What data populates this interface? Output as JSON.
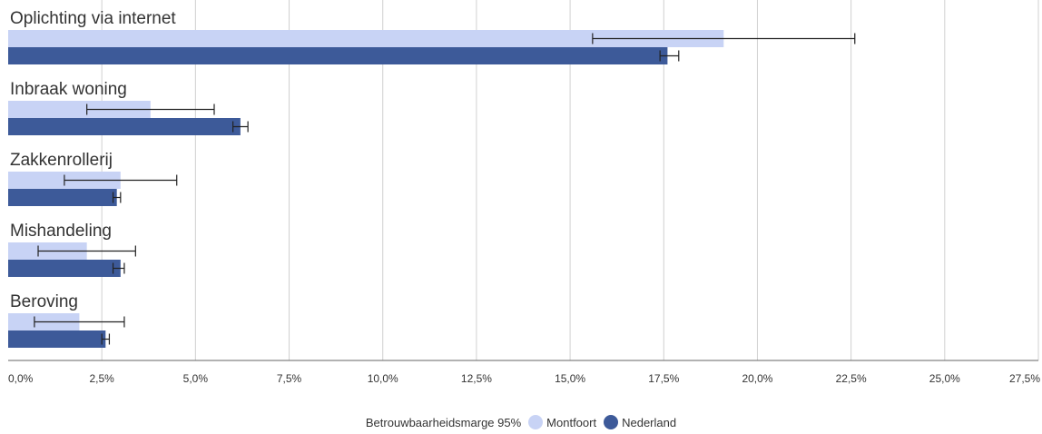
{
  "chart_data": {
    "type": "bar",
    "orientation": "horizontal",
    "categories": [
      "Oplichting via internet",
      "Inbraak woning",
      "Zakkenrollerij",
      "Mishandeling",
      "Beroving"
    ],
    "series": [
      {
        "name": "Montfoort",
        "color": "#c8d3f5",
        "values": [
          19.1,
          3.8,
          3.0,
          2.1,
          1.9
        ],
        "error_low": [
          15.6,
          2.1,
          1.5,
          0.8,
          0.7
        ],
        "error_high": [
          22.6,
          5.5,
          4.5,
          3.4,
          3.1
        ]
      },
      {
        "name": "Nederland",
        "color": "#3d5a99",
        "values": [
          17.6,
          6.2,
          2.9,
          3.0,
          2.6
        ],
        "error_low": [
          17.4,
          6.0,
          2.8,
          2.8,
          2.5
        ],
        "error_high": [
          17.9,
          6.4,
          3.0,
          3.1,
          2.7
        ]
      }
    ],
    "xlim": [
      0,
      27.5
    ],
    "xticks": [
      "0,0%",
      "2,5%",
      "5,0%",
      "7,5%",
      "10,0%",
      "12,5%",
      "15,0%",
      "17,5%",
      "20,0%",
      "22,5%",
      "25,0%",
      "27,5%"
    ],
    "grid": true,
    "legend_position": "bottom",
    "legend_prefix": "Betrouwbaarheidsmarge 95%"
  }
}
